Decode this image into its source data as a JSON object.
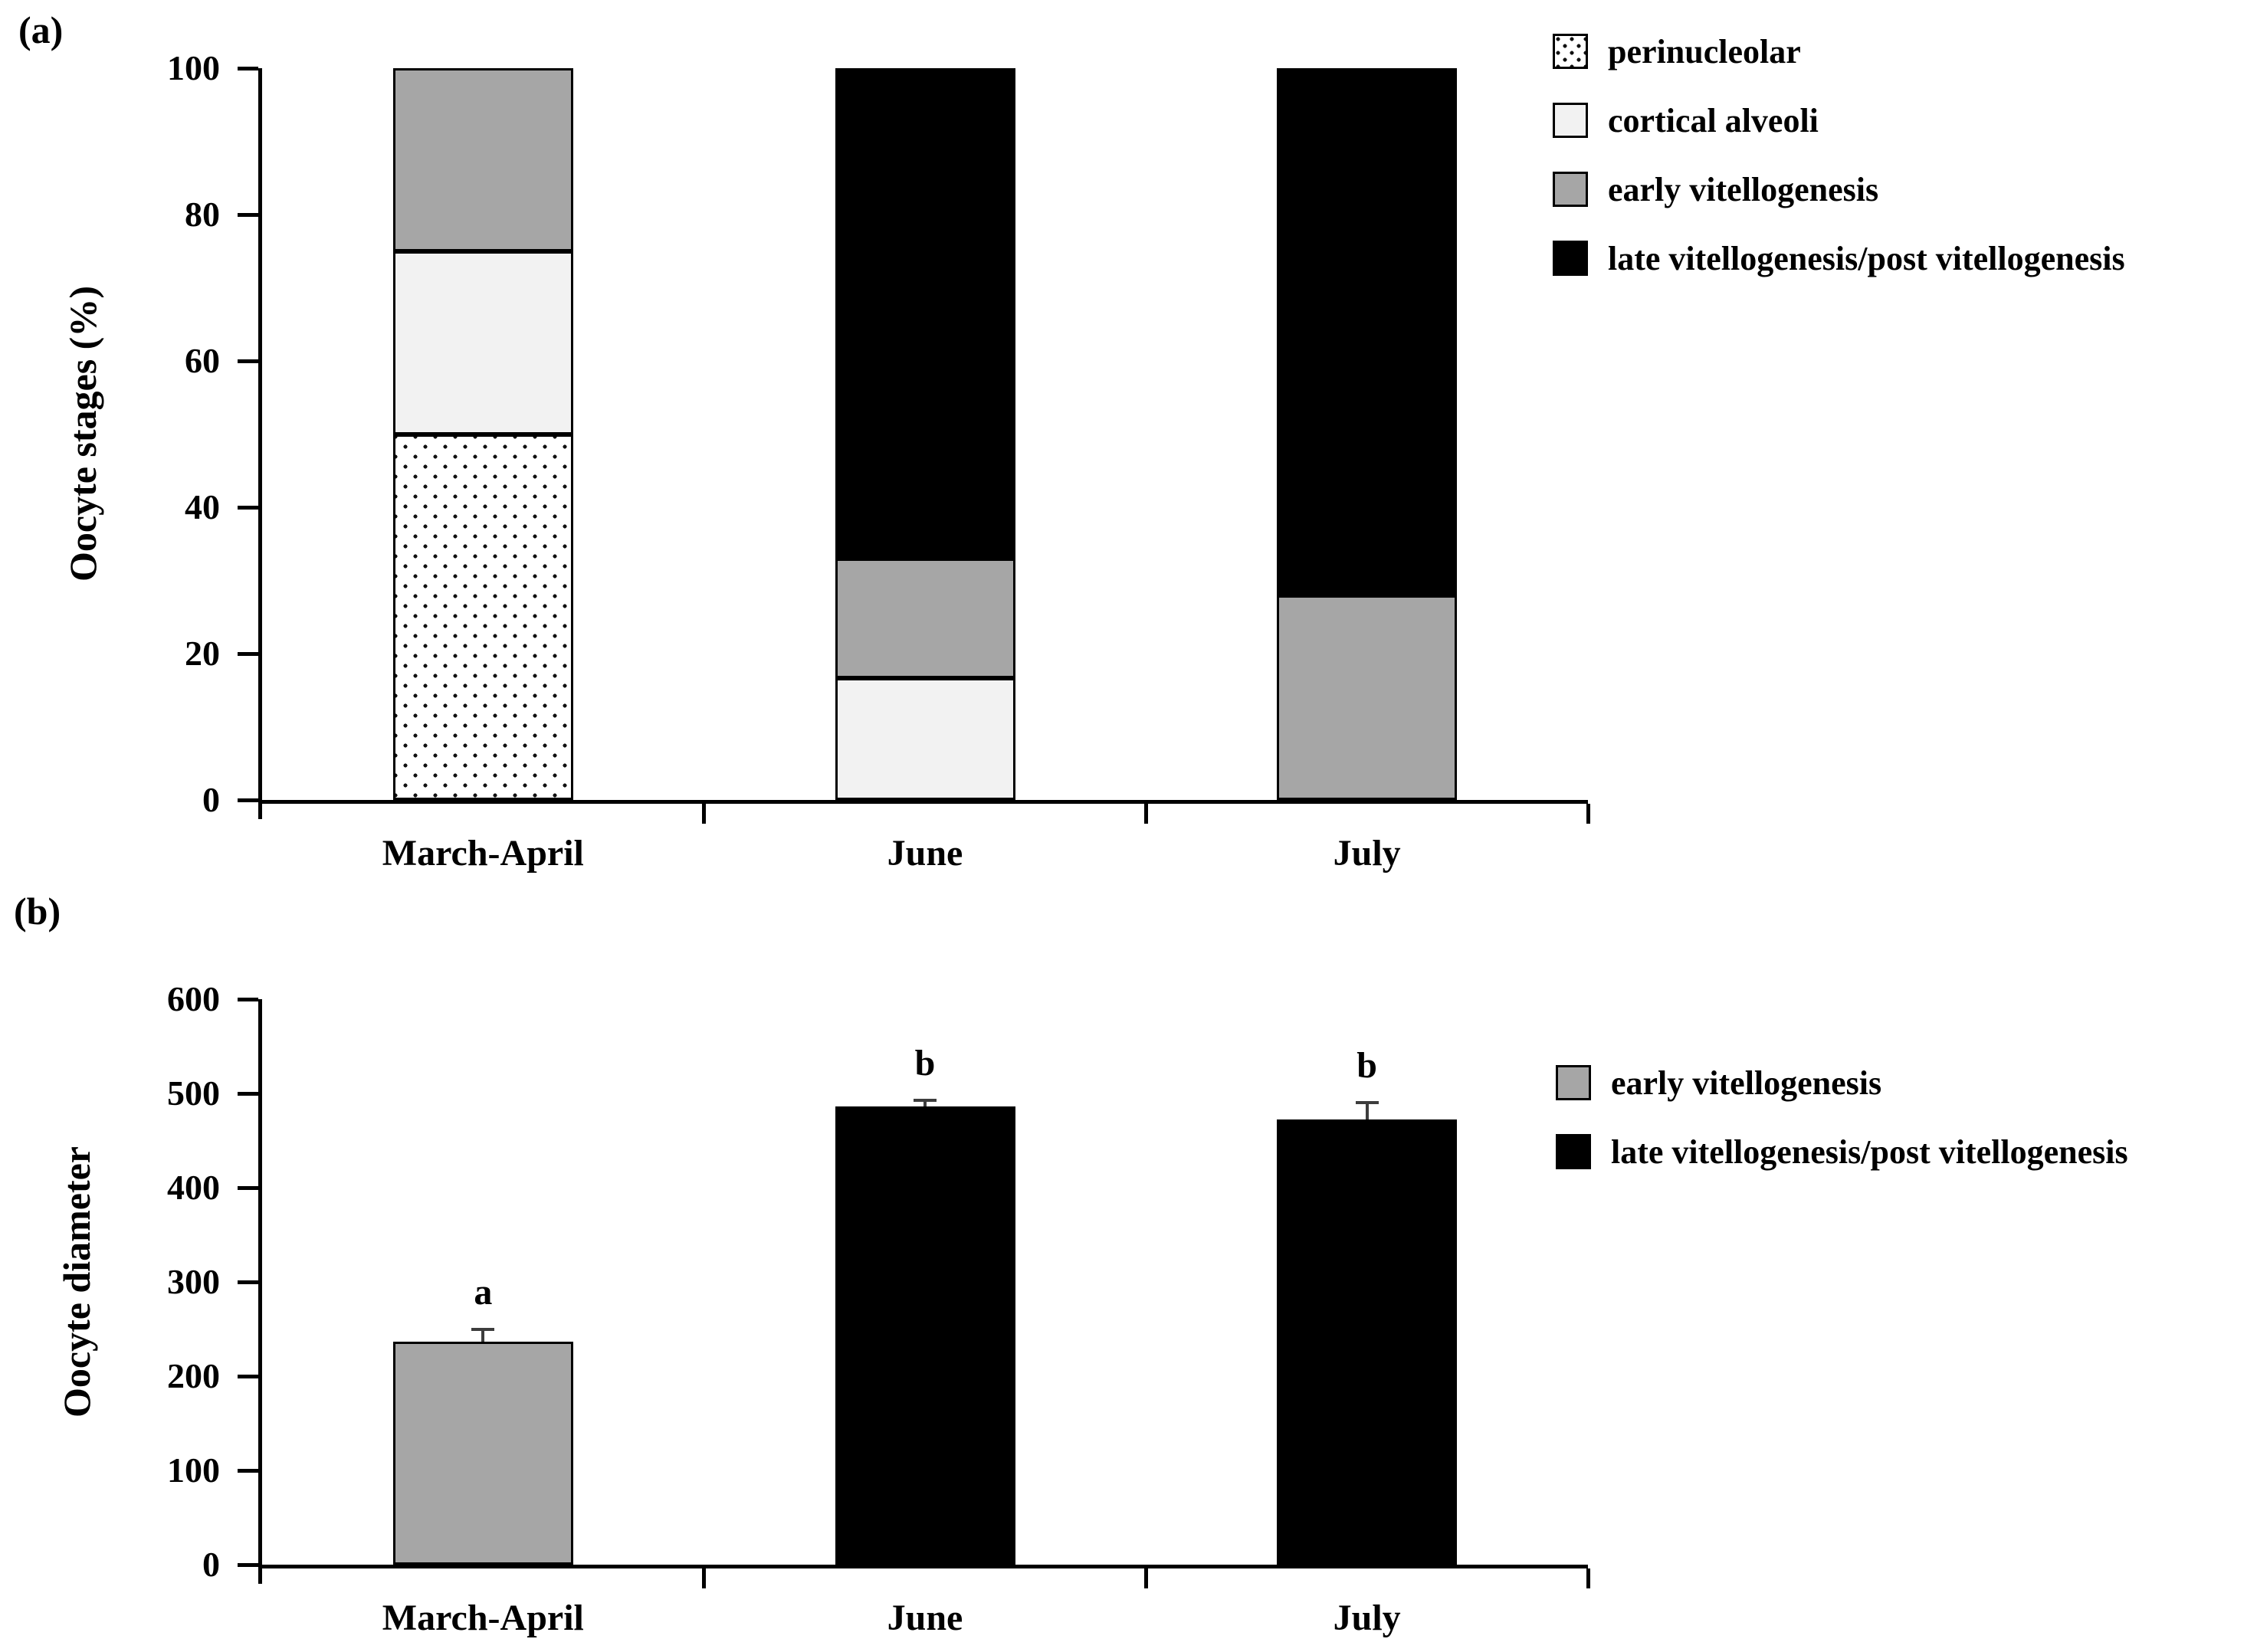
{
  "chart_data": [
    {
      "type": "bar",
      "stacked": true,
      "panel_label": "(a)",
      "ylabel": "Oocyte stages (%)",
      "xlabel": "",
      "ylim": [
        0,
        100
      ],
      "yticks": [
        0,
        20,
        40,
        60,
        80,
        100
      ],
      "categories": [
        "March-April",
        "June",
        "July"
      ],
      "grid": false,
      "legend_position": "top-right",
      "legend": [
        {
          "label": "perinucleolar",
          "fill": "pattern-dots"
        },
        {
          "label": "cortical alveoli",
          "fill": "#f2f2f2"
        },
        {
          "label": "early vitellogenesis",
          "fill": "#a6a6a6"
        },
        {
          "label": "late vitellogenesis/post vitellogenesis",
          "fill": "#000000"
        }
      ],
      "series": [
        {
          "name": "perinucleolar",
          "fill": "pattern-dots",
          "values": [
            50,
            0,
            0
          ]
        },
        {
          "name": "cortical alveoli",
          "fill": "#f2f2f2",
          "values": [
            25,
            16.7,
            0
          ]
        },
        {
          "name": "early vitellogenesis",
          "fill": "#a6a6a6",
          "values": [
            25,
            16.3,
            28
          ]
        },
        {
          "name": "late vitellogenesis/post vitellogenesis",
          "fill": "#000000",
          "values": [
            0,
            67,
            72
          ]
        }
      ]
    },
    {
      "type": "bar",
      "stacked": false,
      "panel_label": "(b)",
      "ylabel": "Oocyte diameter",
      "xlabel": "",
      "ylim": [
        0,
        600
      ],
      "yticks": [
        0,
        100,
        200,
        300,
        400,
        500,
        600
      ],
      "categories": [
        "March-April",
        "June",
        "July"
      ],
      "grid": false,
      "legend_position": "right",
      "legend": [
        {
          "label": "early vitellogenesis",
          "fill": "#a6a6a6"
        },
        {
          "label": "late vitellogenesis/post vitellogenesis",
          "fill": "#000000"
        }
      ],
      "bars": [
        {
          "category": "March-April",
          "value": 237,
          "error": 14,
          "letter": "a",
          "stage": "early vitellogenesis",
          "fill": "#a6a6a6"
        },
        {
          "category": "June",
          "value": 486,
          "error": 8,
          "letter": "b",
          "stage": "late vitellogenesis/post vitellogenesis",
          "fill": "#000000"
        },
        {
          "category": "July",
          "value": 472,
          "error": 20,
          "letter": "b",
          "stage": "late vitellogenesis/post vitellogenesis",
          "fill": "#000000"
        }
      ]
    }
  ]
}
